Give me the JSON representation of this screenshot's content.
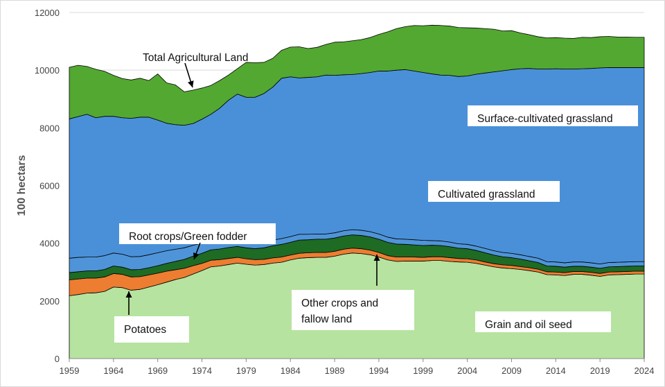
{
  "chart_data": {
    "type": "area",
    "stacked": true,
    "title": "",
    "xlabel": "",
    "ylabel": "100 hectars",
    "ylim": [
      0,
      12000
    ],
    "xlim": [
      1959,
      2024
    ],
    "yticks": [
      0,
      2000,
      4000,
      6000,
      8000,
      10000,
      12000
    ],
    "xticks": [
      1959,
      1964,
      1969,
      1974,
      1979,
      1984,
      1989,
      1994,
      1999,
      2004,
      2009,
      2014,
      2019,
      2024
    ],
    "grid": true,
    "x": [
      1959,
      1960,
      1961,
      1962,
      1963,
      1964,
      1965,
      1966,
      1967,
      1968,
      1969,
      1970,
      1971,
      1972,
      1973,
      1974,
      1975,
      1976,
      1977,
      1978,
      1979,
      1980,
      1981,
      1982,
      1983,
      1984,
      1985,
      1986,
      1987,
      1988,
      1989,
      1990,
      1991,
      1992,
      1993,
      1994,
      1995,
      1996,
      1997,
      1998,
      1999,
      2000,
      2001,
      2002,
      2003,
      2004,
      2005,
      2006,
      2007,
      2008,
      2009,
      2010,
      2011,
      2012,
      2013,
      2014,
      2015,
      2016,
      2017,
      2018,
      2019,
      2020,
      2021,
      2022,
      2023,
      2024
    ],
    "series": [
      {
        "name": "Grain and oil seed",
        "color": "#b6e39f",
        "values": [
          2180,
          2220,
          2270,
          2280,
          2330,
          2480,
          2460,
          2370,
          2400,
          2480,
          2560,
          2650,
          2740,
          2810,
          2930,
          3050,
          3180,
          3210,
          3260,
          3310,
          3270,
          3240,
          3260,
          3310,
          3340,
          3420,
          3480,
          3500,
          3510,
          3510,
          3550,
          3620,
          3660,
          3640,
          3600,
          3520,
          3420,
          3370,
          3380,
          3380,
          3380,
          3400,
          3400,
          3370,
          3350,
          3340,
          3300,
          3240,
          3180,
          3140,
          3120,
          3090,
          3050,
          3000,
          2910,
          2900,
          2880,
          2920,
          2920,
          2890,
          2850,
          2900,
          2910,
          2920,
          2930,
          2930
        ]
      },
      {
        "name": "Other crops and fallow land",
        "color": "#ed7d31",
        "values": [
          550,
          540,
          520,
          510,
          500,
          470,
          460,
          460,
          440,
          420,
          400,
          380,
          340,
          320,
          290,
          250,
          230,
          220,
          210,
          200,
          190,
          190,
          180,
          180,
          180,
          170,
          170,
          170,
          170,
          170,
          170,
          170,
          170,
          170,
          160,
          160,
          150,
          150,
          140,
          140,
          130,
          130,
          130,
          130,
          120,
          120,
          120,
          110,
          110,
          110,
          110,
          100,
          100,
          100,
          100,
          100,
          100,
          100,
          100,
          100,
          100,
          100,
          100,
          100,
          100,
          100
        ]
      },
      {
        "name": "Root crops/Green fodder",
        "color": "#1e6b24",
        "values": [
          250,
          250,
          250,
          250,
          260,
          260,
          250,
          250,
          250,
          250,
          260,
          270,
          290,
          310,
          330,
          350,
          360,
          370,
          380,
          380,
          380,
          380,
          400,
          420,
          440,
          440,
          460,
          450,
          460,
          460,
          460,
          460,
          460,
          460,
          460,
          460,
          460,
          450,
          440,
          420,
          410,
          400,
          390,
          380,
          360,
          350,
          330,
          320,
          300,
          280,
          270,
          260,
          240,
          230,
          200,
          200,
          190,
          180,
          180,
          180,
          180,
          180,
          180,
          180,
          180,
          180
        ]
      },
      {
        "name": "Root crops/Green fodder (upper)",
        "color": "#4f94d8",
        "values": [
          500,
          500,
          480,
          480,
          480,
          450,
          450,
          450,
          450,
          450,
          450,
          440,
          420,
          400,
          380,
          350,
          300,
          280,
          260,
          230,
          220,
          200,
          200,
          200,
          200,
          200,
          200,
          190,
          180,
          180,
          180,
          180,
          180,
          180,
          180,
          180,
          180,
          180,
          180,
          180,
          180,
          160,
          160,
          160,
          150,
          150,
          150,
          150,
          150,
          150,
          150,
          150,
          150,
          150,
          150,
          150,
          150,
          150,
          150,
          150,
          150,
          150,
          150,
          150,
          150,
          150
        ]
      },
      {
        "name": "Cultivated grassland",
        "color": "#4a90d9",
        "values": [
          4830,
          4880,
          4950,
          4830,
          4830,
          4740,
          4730,
          4800,
          4830,
          4770,
          4600,
          4420,
          4320,
          4250,
          4220,
          4300,
          4400,
          4600,
          4850,
          5050,
          5000,
          5050,
          5150,
          5300,
          5560,
          5540,
          5420,
          5440,
          5450,
          5510,
          5460,
          5410,
          5380,
          5430,
          5520,
          5650,
          5760,
          5850,
          5880,
          5850,
          5820,
          5780,
          5750,
          5780,
          5800,
          5840,
          5960,
          6080,
          6200,
          6300,
          6370,
          6450,
          6520,
          6560,
          6680,
          6700,
          6720,
          6690,
          6700,
          6740,
          6800,
          6760,
          6750,
          6740,
          6730,
          6730
        ]
      },
      {
        "name": "Surface-cultivated grassland",
        "color": "#53a831",
        "values": [
          1790,
          1780,
          1660,
          1680,
          1560,
          1420,
          1360,
          1330,
          1350,
          1270,
          1600,
          1400,
          1380,
          1160,
          1160,
          1080,
          1000,
          960,
          870,
          880,
          1210,
          1200,
          1080,
          1000,
          970,
          1030,
          1080,
          1000,
          1020,
          1060,
          1150,
          1140,
          1170,
          1180,
          1210,
          1270,
          1360,
          1440,
          1490,
          1580,
          1620,
          1690,
          1720,
          1710,
          1700,
          1670,
          1600,
          1540,
          1480,
          1380,
          1350,
          1240,
          1170,
          1120,
          1080,
          1080,
          1070,
          1060,
          1090,
          1070,
          1080,
          1080,
          1060,
          1060,
          1050,
          1050
        ]
      }
    ],
    "total_agricultural_land": [
      10100,
      10170,
      10130,
      10030,
      9960,
      9820,
      9710,
      9660,
      9720,
      9640,
      9870,
      9560,
      9490,
      9250,
      9310,
      9380,
      9470,
      9590,
      9730,
      9850,
      10270,
      10260,
      10270,
      10410,
      10690,
      10800,
      10810,
      10750,
      10790,
      10890,
      10970,
      10980,
      11040,
      11070,
      11150,
      11240,
      11330,
      11410,
      11490,
      11550,
      11560,
      11620,
      11610,
      11580,
      11550,
      11480,
      11460,
      11440,
      11420,
      11360,
      11340,
      11290,
      11230,
      11160,
      11120,
      11130,
      11110,
      11100,
      11140,
      11130,
      11160,
      11170,
      11150,
      11150,
      11140,
      11140
    ],
    "annotations": {
      "total": "Total Agricultural Land",
      "surface": "Surface-cultivated grassland",
      "cultivated": "Cultivated grassland",
      "root": "Root crops/Green fodder",
      "other": "Other crops and fallow land",
      "potatoes": "Potatoes",
      "grain": "Grain and oil seed"
    }
  }
}
